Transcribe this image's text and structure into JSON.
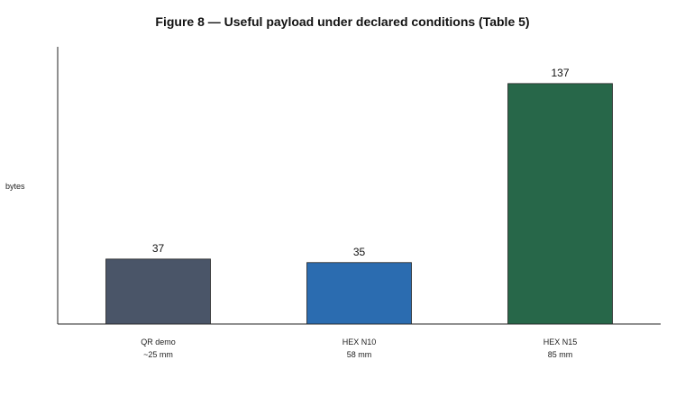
{
  "chart_data": {
    "type": "bar",
    "title": "Figure 8 — Useful payload under declared conditions (Table 5)",
    "xlabel": "",
    "ylabel": "bytes",
    "categories": [
      {
        "line1": "QR demo",
        "line2": "~25 mm"
      },
      {
        "line1": "HEX N10",
        "line2": "58 mm"
      },
      {
        "line1": "HEX N15",
        "line2": "85 mm"
      }
    ],
    "values": [
      37,
      35,
      137
    ],
    "value_labels": [
      "37",
      "35",
      "137"
    ],
    "colors": [
      "#4a5568",
      "#2b6cb0",
      "#276749"
    ],
    "ylim": [
      0,
      150
    ],
    "grid": false,
    "legend": "none"
  }
}
